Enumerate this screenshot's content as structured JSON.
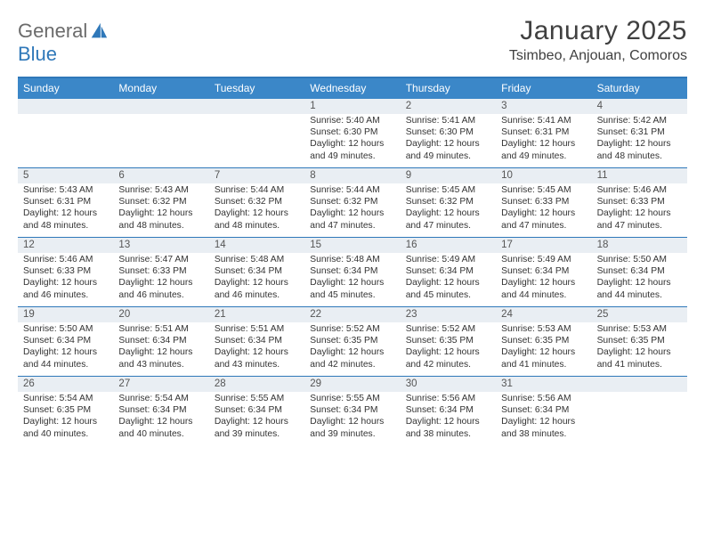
{
  "logo": {
    "text1": "General",
    "text2": "Blue"
  },
  "title": "January 2025",
  "location": "Tsimbeo, Anjouan, Comoros",
  "colors": {
    "header_bar": "#3b87c8",
    "accent_line": "#2f78b9",
    "daynum_bg": "#e9eef3",
    "text": "#3a3a3a"
  },
  "weekdays": [
    "Sunday",
    "Monday",
    "Tuesday",
    "Wednesday",
    "Thursday",
    "Friday",
    "Saturday"
  ],
  "weeks": [
    [
      {
        "n": "",
        "lines": []
      },
      {
        "n": "",
        "lines": []
      },
      {
        "n": "",
        "lines": []
      },
      {
        "n": "1",
        "lines": [
          "Sunrise: 5:40 AM",
          "Sunset: 6:30 PM",
          "Daylight: 12 hours and 49 minutes."
        ]
      },
      {
        "n": "2",
        "lines": [
          "Sunrise: 5:41 AM",
          "Sunset: 6:30 PM",
          "Daylight: 12 hours and 49 minutes."
        ]
      },
      {
        "n": "3",
        "lines": [
          "Sunrise: 5:41 AM",
          "Sunset: 6:31 PM",
          "Daylight: 12 hours and 49 minutes."
        ]
      },
      {
        "n": "4",
        "lines": [
          "Sunrise: 5:42 AM",
          "Sunset: 6:31 PM",
          "Daylight: 12 hours and 48 minutes."
        ]
      }
    ],
    [
      {
        "n": "5",
        "lines": [
          "Sunrise: 5:43 AM",
          "Sunset: 6:31 PM",
          "Daylight: 12 hours and 48 minutes."
        ]
      },
      {
        "n": "6",
        "lines": [
          "Sunrise: 5:43 AM",
          "Sunset: 6:32 PM",
          "Daylight: 12 hours and 48 minutes."
        ]
      },
      {
        "n": "7",
        "lines": [
          "Sunrise: 5:44 AM",
          "Sunset: 6:32 PM",
          "Daylight: 12 hours and 48 minutes."
        ]
      },
      {
        "n": "8",
        "lines": [
          "Sunrise: 5:44 AM",
          "Sunset: 6:32 PM",
          "Daylight: 12 hours and 47 minutes."
        ]
      },
      {
        "n": "9",
        "lines": [
          "Sunrise: 5:45 AM",
          "Sunset: 6:32 PM",
          "Daylight: 12 hours and 47 minutes."
        ]
      },
      {
        "n": "10",
        "lines": [
          "Sunrise: 5:45 AM",
          "Sunset: 6:33 PM",
          "Daylight: 12 hours and 47 minutes."
        ]
      },
      {
        "n": "11",
        "lines": [
          "Sunrise: 5:46 AM",
          "Sunset: 6:33 PM",
          "Daylight: 12 hours and 47 minutes."
        ]
      }
    ],
    [
      {
        "n": "12",
        "lines": [
          "Sunrise: 5:46 AM",
          "Sunset: 6:33 PM",
          "Daylight: 12 hours and 46 minutes."
        ]
      },
      {
        "n": "13",
        "lines": [
          "Sunrise: 5:47 AM",
          "Sunset: 6:33 PM",
          "Daylight: 12 hours and 46 minutes."
        ]
      },
      {
        "n": "14",
        "lines": [
          "Sunrise: 5:48 AM",
          "Sunset: 6:34 PM",
          "Daylight: 12 hours and 46 minutes."
        ]
      },
      {
        "n": "15",
        "lines": [
          "Sunrise: 5:48 AM",
          "Sunset: 6:34 PM",
          "Daylight: 12 hours and 45 minutes."
        ]
      },
      {
        "n": "16",
        "lines": [
          "Sunrise: 5:49 AM",
          "Sunset: 6:34 PM",
          "Daylight: 12 hours and 45 minutes."
        ]
      },
      {
        "n": "17",
        "lines": [
          "Sunrise: 5:49 AM",
          "Sunset: 6:34 PM",
          "Daylight: 12 hours and 44 minutes."
        ]
      },
      {
        "n": "18",
        "lines": [
          "Sunrise: 5:50 AM",
          "Sunset: 6:34 PM",
          "Daylight: 12 hours and 44 minutes."
        ]
      }
    ],
    [
      {
        "n": "19",
        "lines": [
          "Sunrise: 5:50 AM",
          "Sunset: 6:34 PM",
          "Daylight: 12 hours and 44 minutes."
        ]
      },
      {
        "n": "20",
        "lines": [
          "Sunrise: 5:51 AM",
          "Sunset: 6:34 PM",
          "Daylight: 12 hours and 43 minutes."
        ]
      },
      {
        "n": "21",
        "lines": [
          "Sunrise: 5:51 AM",
          "Sunset: 6:34 PM",
          "Daylight: 12 hours and 43 minutes."
        ]
      },
      {
        "n": "22",
        "lines": [
          "Sunrise: 5:52 AM",
          "Sunset: 6:35 PM",
          "Daylight: 12 hours and 42 minutes."
        ]
      },
      {
        "n": "23",
        "lines": [
          "Sunrise: 5:52 AM",
          "Sunset: 6:35 PM",
          "Daylight: 12 hours and 42 minutes."
        ]
      },
      {
        "n": "24",
        "lines": [
          "Sunrise: 5:53 AM",
          "Sunset: 6:35 PM",
          "Daylight: 12 hours and 41 minutes."
        ]
      },
      {
        "n": "25",
        "lines": [
          "Sunrise: 5:53 AM",
          "Sunset: 6:35 PM",
          "Daylight: 12 hours and 41 minutes."
        ]
      }
    ],
    [
      {
        "n": "26",
        "lines": [
          "Sunrise: 5:54 AM",
          "Sunset: 6:35 PM",
          "Daylight: 12 hours and 40 minutes."
        ]
      },
      {
        "n": "27",
        "lines": [
          "Sunrise: 5:54 AM",
          "Sunset: 6:34 PM",
          "Daylight: 12 hours and 40 minutes."
        ]
      },
      {
        "n": "28",
        "lines": [
          "Sunrise: 5:55 AM",
          "Sunset: 6:34 PM",
          "Daylight: 12 hours and 39 minutes."
        ]
      },
      {
        "n": "29",
        "lines": [
          "Sunrise: 5:55 AM",
          "Sunset: 6:34 PM",
          "Daylight: 12 hours and 39 minutes."
        ]
      },
      {
        "n": "30",
        "lines": [
          "Sunrise: 5:56 AM",
          "Sunset: 6:34 PM",
          "Daylight: 12 hours and 38 minutes."
        ]
      },
      {
        "n": "31",
        "lines": [
          "Sunrise: 5:56 AM",
          "Sunset: 6:34 PM",
          "Daylight: 12 hours and 38 minutes."
        ]
      },
      {
        "n": "",
        "lines": []
      }
    ]
  ]
}
